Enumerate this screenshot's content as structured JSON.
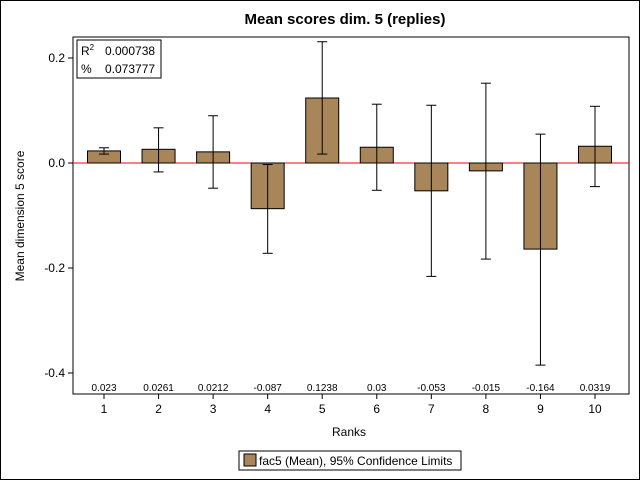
{
  "chart_data": {
    "type": "bar",
    "title": "Mean scores dim. 5 (replies)",
    "xlabel": "Ranks",
    "ylabel": "Mean dimension 5 score",
    "categories": [
      "1",
      "2",
      "3",
      "4",
      "5",
      "6",
      "7",
      "8",
      "9",
      "10"
    ],
    "values": [
      0.023,
      0.0261,
      0.0212,
      -0.087,
      0.1238,
      0.03,
      -0.053,
      -0.015,
      -0.164,
      0.0319
    ],
    "data_labels": [
      "0.023",
      "0.0261",
      "0.0212",
      "-0.087",
      "0.1238",
      "0.03",
      "-0.053",
      "-0.015",
      "-0.164",
      "0.0319"
    ],
    "ci_lower": [
      0.017,
      -0.017,
      -0.048,
      -0.172,
      0.017,
      -0.052,
      -0.216,
      -0.183,
      -0.385,
      -0.045
    ],
    "ci_upper": [
      0.029,
      0.067,
      0.09,
      -0.003,
      0.231,
      0.112,
      0.11,
      0.152,
      0.055,
      0.108
    ],
    "yticks": [
      -0.4,
      -0.2,
      0.0,
      0.2
    ],
    "ytick_labels": [
      "-0.4",
      "-0.2",
      "0.0",
      "0.2"
    ],
    "ylim": [
      -0.44,
      0.24
    ],
    "reference_line": {
      "y": 0,
      "color": "#ff0000"
    },
    "inset": {
      "r2_label": "R",
      "r2_sup": "2",
      "r2_value": "0.000738",
      "pct_label": "%",
      "pct_value": "0.073777"
    },
    "legend": {
      "label": "fac5 (Mean), 95% Confidence Limits",
      "placement": "bottom-center"
    },
    "colors": {
      "bar_fill": "#a9865a",
      "bar_stroke": "#000000"
    },
    "grid": false
  }
}
